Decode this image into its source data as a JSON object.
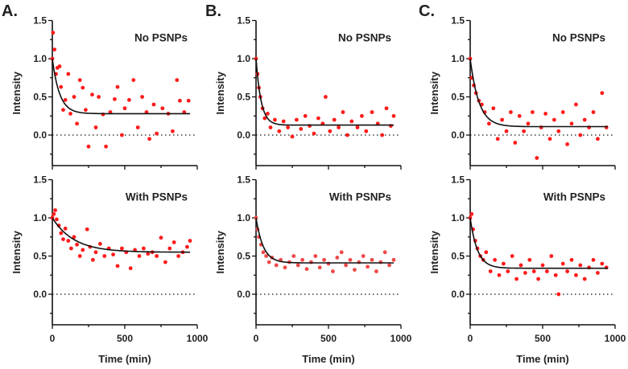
{
  "chart_data": [
    {
      "panel": "A.",
      "type": "scatter",
      "title": "No PSNPs",
      "xlabel": "Time (min)",
      "ylabel": "Intensity",
      "xlim": [
        0,
        1000
      ],
      "ylim": [
        -0.4,
        1.5
      ],
      "xticks": [
        "0",
        "500",
        "1000"
      ],
      "yticks": [
        "0.0",
        "0.5",
        "1.0",
        "1.5"
      ],
      "fit": {
        "plateau": 0.28,
        "tau": 50
      },
      "color": "#ff1a1a",
      "points": [
        [
          0,
          1.0
        ],
        [
          5,
          1.34
        ],
        [
          15,
          1.12
        ],
        [
          25,
          0.8
        ],
        [
          35,
          0.88
        ],
        [
          50,
          0.9
        ],
        [
          60,
          0.63
        ],
        [
          75,
          0.33
        ],
        [
          90,
          0.46
        ],
        [
          110,
          0.8
        ],
        [
          125,
          0.28
        ],
        [
          150,
          0.5
        ],
        [
          170,
          0.15
        ],
        [
          190,
          0.72
        ],
        [
          210,
          0.62
        ],
        [
          230,
          0.33
        ],
        [
          250,
          -0.15
        ],
        [
          275,
          0.53
        ],
        [
          300,
          0.1
        ],
        [
          320,
          0.5
        ],
        [
          350,
          0.27
        ],
        [
          370,
          -0.15
        ],
        [
          400,
          0.3
        ],
        [
          430,
          0.47
        ],
        [
          450,
          0.63
        ],
        [
          480,
          0.0
        ],
        [
          500,
          0.35
        ],
        [
          530,
          0.46
        ],
        [
          560,
          0.72
        ],
        [
          590,
          0.1
        ],
        [
          620,
          0.5
        ],
        [
          650,
          0.3
        ],
        [
          670,
          -0.05
        ],
        [
          700,
          0.4
        ],
        [
          720,
          0.02
        ],
        [
          760,
          0.35
        ],
        [
          800,
          0.28
        ],
        [
          830,
          0.05
        ],
        [
          860,
          0.72
        ],
        [
          880,
          0.45
        ],
        [
          910,
          0.3
        ],
        [
          940,
          0.45
        ]
      ]
    },
    {
      "panel": "B.",
      "type": "scatter",
      "title": "No PSNPs",
      "xlabel": "Time (min)",
      "ylabel": "Intensity",
      "xlim": [
        0,
        1000
      ],
      "ylim": [
        -0.4,
        1.5
      ],
      "xticks": [
        "0",
        "500",
        "1000"
      ],
      "yticks": [
        "0.0",
        "0.5",
        "1.0",
        "1.5"
      ],
      "fit": {
        "plateau": 0.13,
        "tau": 35
      },
      "color": "#ff1a1a",
      "points": [
        [
          0,
          1.0
        ],
        [
          10,
          0.8
        ],
        [
          20,
          0.62
        ],
        [
          30,
          0.5
        ],
        [
          45,
          0.35
        ],
        [
          60,
          0.22
        ],
        [
          80,
          0.28
        ],
        [
          100,
          0.1
        ],
        [
          130,
          0.2
        ],
        [
          160,
          0.05
        ],
        [
          190,
          0.18
        ],
        [
          220,
          0.1
        ],
        [
          250,
          -0.02
        ],
        [
          280,
          0.2
        ],
        [
          310,
          0.08
        ],
        [
          340,
          0.25
        ],
        [
          370,
          0.12
        ],
        [
          400,
          0.02
        ],
        [
          430,
          0.22
        ],
        [
          460,
          0.15
        ],
        [
          480,
          0.5
        ],
        [
          510,
          0.05
        ],
        [
          540,
          0.2
        ],
        [
          570,
          0.1
        ],
        [
          600,
          0.3
        ],
        [
          630,
          0.0
        ],
        [
          660,
          0.18
        ],
        [
          700,
          0.1
        ],
        [
          730,
          0.25
        ],
        [
          760,
          0.05
        ],
        [
          800,
          0.3
        ],
        [
          840,
          0.15
        ],
        [
          870,
          0.0
        ],
        [
          900,
          0.35
        ],
        [
          930,
          0.12
        ],
        [
          950,
          0.25
        ]
      ]
    },
    {
      "panel": "C.",
      "type": "scatter",
      "title": "No PSNPs",
      "xlabel": "Time (min)",
      "ylabel": "Intensity",
      "xlim": [
        0,
        1000
      ],
      "ylim": [
        -0.4,
        1.5
      ],
      "xticks": [
        "0",
        "500",
        "1000"
      ],
      "yticks": [
        "0.0",
        "0.5",
        "1.0",
        "1.5"
      ],
      "fit": {
        "plateau": 0.11,
        "tau": 60
      },
      "color": "#ff1a1a",
      "points": [
        [
          0,
          1.0
        ],
        [
          10,
          0.75
        ],
        [
          25,
          0.65
        ],
        [
          40,
          0.55
        ],
        [
          60,
          0.45
        ],
        [
          80,
          0.4
        ],
        [
          100,
          0.3
        ],
        [
          130,
          0.15
        ],
        [
          160,
          0.35
        ],
        [
          190,
          -0.05
        ],
        [
          220,
          0.2
        ],
        [
          250,
          0.05
        ],
        [
          280,
          0.3
        ],
        [
          310,
          -0.1
        ],
        [
          340,
          0.25
        ],
        [
          370,
          0.05
        ],
        [
          400,
          0.15
        ],
        [
          430,
          0.3
        ],
        [
          460,
          -0.3
        ],
        [
          490,
          0.1
        ],
        [
          520,
          0.28
        ],
        [
          550,
          -0.05
        ],
        [
          580,
          0.2
        ],
        [
          610,
          0.05
        ],
        [
          640,
          0.3
        ],
        [
          670,
          -0.12
        ],
        [
          700,
          0.15
        ],
        [
          730,
          0.4
        ],
        [
          760,
          0.0
        ],
        [
          790,
          0.2
        ],
        [
          820,
          0.1
        ],
        [
          850,
          0.3
        ],
        [
          880,
          -0.05
        ],
        [
          910,
          0.55
        ],
        [
          940,
          0.1
        ]
      ]
    },
    {
      "panel": "A.",
      "type": "scatter",
      "title": "With PSNPs",
      "xlabel": "Time (min)",
      "ylabel": "Intensity",
      "xlim": [
        0,
        1000
      ],
      "ylim": [
        -0.4,
        1.5
      ],
      "xticks": [
        "0",
        "500",
        "1000"
      ],
      "yticks": [
        "0.0",
        "0.5",
        "1.0",
        "1.5"
      ],
      "fit": {
        "plateau": 0.55,
        "tau": 150
      },
      "color": "#ff1a1a",
      "points": [
        [
          0,
          1.0
        ],
        [
          10,
          1.05
        ],
        [
          20,
          1.1
        ],
        [
          30,
          0.98
        ],
        [
          45,
          0.9
        ],
        [
          60,
          0.8
        ],
        [
          75,
          0.72
        ],
        [
          90,
          0.86
        ],
        [
          110,
          0.7
        ],
        [
          130,
          0.6
        ],
        [
          150,
          0.75
        ],
        [
          170,
          0.65
        ],
        [
          190,
          0.5
        ],
        [
          210,
          0.58
        ],
        [
          240,
          0.85
        ],
        [
          260,
          0.62
        ],
        [
          280,
          0.45
        ],
        [
          300,
          0.55
        ],
        [
          330,
          0.66
        ],
        [
          360,
          0.5
        ],
        [
          390,
          0.6
        ],
        [
          420,
          0.52
        ],
        [
          450,
          0.37
        ],
        [
          480,
          0.6
        ],
        [
          510,
          0.55
        ],
        [
          540,
          0.34
        ],
        [
          570,
          0.58
        ],
        [
          600,
          0.5
        ],
        [
          630,
          0.6
        ],
        [
          660,
          0.53
        ],
        [
          690,
          0.55
        ],
        [
          720,
          0.5
        ],
        [
          750,
          0.74
        ],
        [
          780,
          0.42
        ],
        [
          810,
          0.6
        ],
        [
          840,
          0.68
        ],
        [
          870,
          0.5
        ],
        [
          900,
          0.55
        ],
        [
          930,
          0.62
        ],
        [
          950,
          0.7
        ]
      ]
    },
    {
      "panel": "B.",
      "type": "scatter",
      "title": "With PSNPs",
      "xlabel": "Time (min)",
      "ylabel": "Intensity",
      "xlim": [
        0,
        1000
      ],
      "ylim": [
        -0.4,
        1.5
      ],
      "xticks": [
        "0",
        "500",
        "1000"
      ],
      "yticks": [
        "0.0",
        "0.5",
        "1.0",
        "1.5"
      ],
      "fit": {
        "plateau": 0.41,
        "tau": 50
      },
      "color": "#f04848",
      "points": [
        [
          0,
          1.0
        ],
        [
          10,
          0.85
        ],
        [
          20,
          0.75
        ],
        [
          35,
          0.65
        ],
        [
          50,
          0.55
        ],
        [
          70,
          0.5
        ],
        [
          90,
          0.42
        ],
        [
          110,
          0.48
        ],
        [
          140,
          0.38
        ],
        [
          170,
          0.45
        ],
        [
          200,
          0.35
        ],
        [
          230,
          0.42
        ],
        [
          260,
          0.5
        ],
        [
          290,
          0.38
        ],
        [
          320,
          0.45
        ],
        [
          350,
          0.33
        ],
        [
          380,
          0.42
        ],
        [
          410,
          0.5
        ],
        [
          440,
          0.35
        ],
        [
          470,
          0.45
        ],
        [
          500,
          0.4
        ],
        [
          530,
          0.3
        ],
        [
          560,
          0.48
        ],
        [
          590,
          0.55
        ],
        [
          620,
          0.38
        ],
        [
          650,
          0.45
        ],
        [
          680,
          0.32
        ],
        [
          710,
          0.42
        ],
        [
          740,
          0.5
        ],
        [
          770,
          0.36
        ],
        [
          800,
          0.45
        ],
        [
          830,
          0.3
        ],
        [
          860,
          0.42
        ],
        [
          890,
          0.55
        ],
        [
          920,
          0.38
        ],
        [
          950,
          0.45
        ]
      ]
    },
    {
      "panel": "C.",
      "type": "scatter",
      "title": "With PSNPs",
      "xlabel": "Time (min)",
      "ylabel": "Intensity",
      "xlim": [
        0,
        1000
      ],
      "ylim": [
        -0.4,
        1.5
      ],
      "xticks": [
        "0",
        "500",
        "1000"
      ],
      "yticks": [
        "0.0",
        "0.5",
        "1.0",
        "1.5"
      ],
      "fit": {
        "plateau": 0.34,
        "tau": 50
      },
      "color": "#ff1a1a",
      "points": [
        [
          0,
          1.0
        ],
        [
          10,
          1.05
        ],
        [
          20,
          0.85
        ],
        [
          35,
          0.7
        ],
        [
          50,
          0.6
        ],
        [
          70,
          0.5
        ],
        [
          90,
          0.45
        ],
        [
          110,
          0.55
        ],
        [
          140,
          0.3
        ],
        [
          170,
          0.45
        ],
        [
          200,
          0.25
        ],
        [
          230,
          0.4
        ],
        [
          260,
          0.3
        ],
        [
          290,
          0.5
        ],
        [
          320,
          0.2
        ],
        [
          350,
          0.38
        ],
        [
          380,
          0.28
        ],
        [
          410,
          0.45
        ],
        [
          440,
          0.3
        ],
        [
          470,
          0.2
        ],
        [
          500,
          0.38
        ],
        [
          530,
          0.3
        ],
        [
          560,
          0.5
        ],
        [
          590,
          0.25
        ],
        [
          610,
          0.0
        ],
        [
          640,
          0.4
        ],
        [
          670,
          0.3
        ],
        [
          700,
          0.45
        ],
        [
          730,
          0.25
        ],
        [
          760,
          0.38
        ],
        [
          790,
          0.2
        ],
        [
          820,
          0.35
        ],
        [
          850,
          0.45
        ],
        [
          880,
          0.28
        ],
        [
          910,
          0.4
        ],
        [
          940,
          0.35
        ]
      ]
    }
  ]
}
